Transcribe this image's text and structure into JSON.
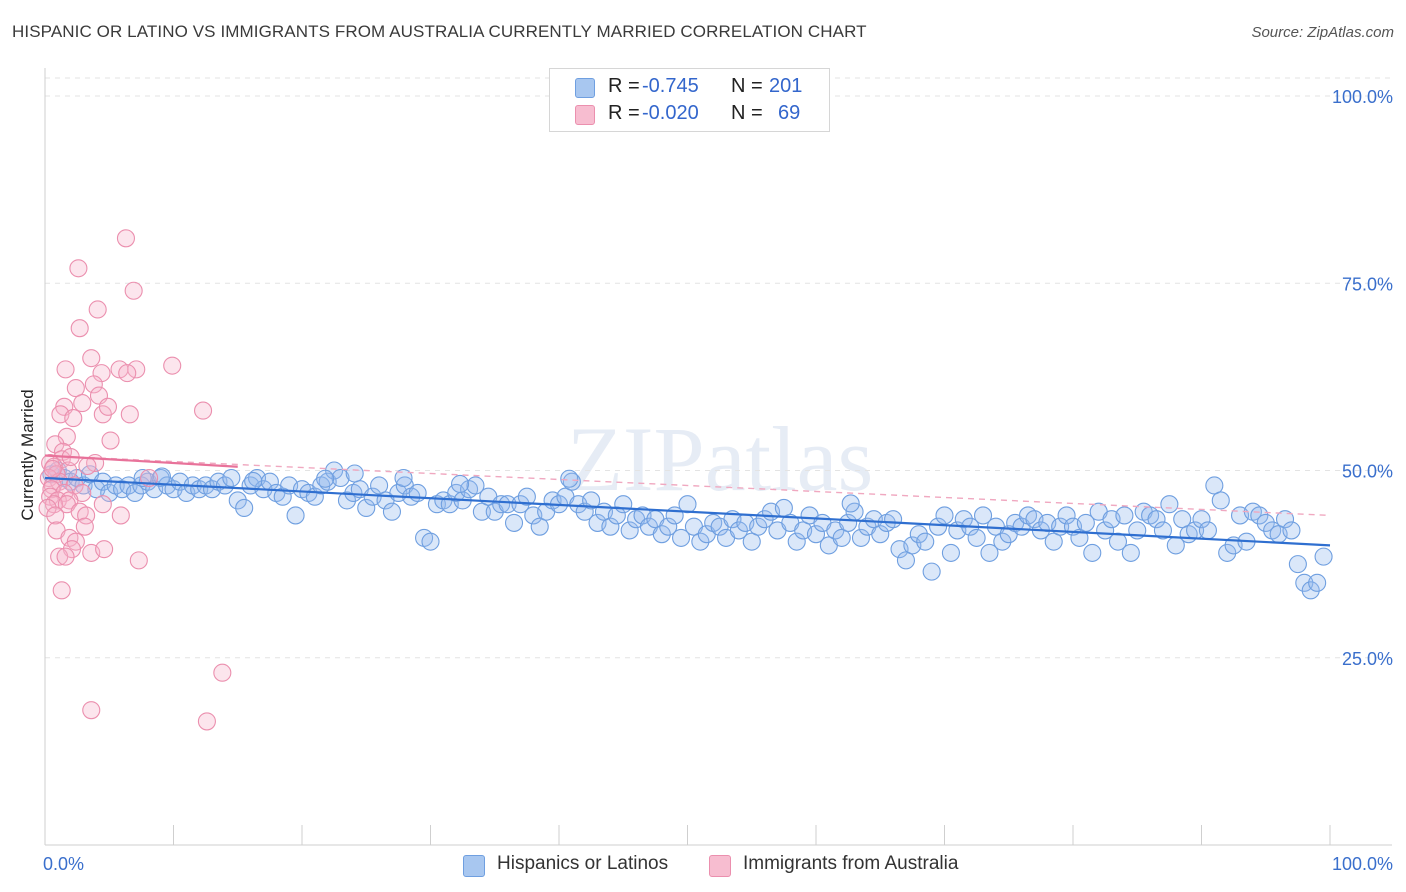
{
  "title": "HISPANIC OR LATINO VS IMMIGRANTS FROM AUSTRALIA CURRENTLY MARRIED CORRELATION CHART",
  "source": "Source: ZipAtlas.com",
  "watermark": "ZIPatlas",
  "legend_top": {
    "rows": [
      {
        "r_label": "R =",
        "r_value": "-0.745",
        "n_label": "N =",
        "n_value": "201",
        "color": "#a8c7f0",
        "border": "#6f9fe0"
      },
      {
        "r_label": "R =",
        "r_value": "-0.020",
        "n_label": "N =",
        "n_value": "69",
        "color": "#f7bdd0",
        "border": "#eb8fae"
      }
    ]
  },
  "legend_bottom": [
    {
      "label": "Hispanics or Latinos",
      "color": "#a8c7f0",
      "border": "#6f9fe0"
    },
    {
      "label": "Immigrants from Australia",
      "color": "#f7bdd0",
      "border": "#eb8fae"
    }
  ],
  "chart_data": {
    "type": "scatter",
    "title": "HISPANIC OR LATINO VS IMMIGRANTS FROM AUSTRALIA CURRENTLY MARRIED CORRELATION CHART",
    "xlabel": "",
    "ylabel": "Currently Married",
    "xlim": [
      0,
      100
    ],
    "ylim": [
      0,
      100
    ],
    "x_tick_labels": [
      "0.0%",
      "100.0%"
    ],
    "y_tick_labels": [
      "25.0%",
      "50.0%",
      "75.0%",
      "100.0%"
    ],
    "y_ticks": [
      25,
      50,
      75,
      100
    ],
    "grid": true,
    "legend_position": "top-center",
    "series": [
      {
        "name": "Hispanics or Latinos",
        "color": "#6f9fe0",
        "fill": "rgba(150,186,238,0.35)",
        "trend": {
          "x": [
            0,
            100
          ],
          "y": [
            49.0,
            40.0
          ],
          "color": "#2f6fd0",
          "dashed": false
        },
        "points": [
          [
            0.5,
            49.5
          ],
          [
            1.0,
            50.0
          ],
          [
            1.5,
            49.0
          ],
          [
            2.0,
            48.5
          ],
          [
            2.5,
            49.0
          ],
          [
            3.0,
            48.0
          ],
          [
            3.5,
            49.5
          ],
          [
            4.0,
            47.5
          ],
          [
            4.5,
            48.5
          ],
          [
            5.0,
            47.0
          ],
          [
            5.5,
            48.0
          ],
          [
            6.0,
            47.5
          ],
          [
            6.5,
            48.0
          ],
          [
            7.0,
            47.0
          ],
          [
            7.5,
            48.0
          ],
          [
            8.0,
            48.5
          ],
          [
            8.5,
            47.5
          ],
          [
            9.0,
            49.0
          ],
          [
            9.5,
            48.0
          ],
          [
            10.0,
            47.5
          ],
          [
            10.5,
            48.5
          ],
          [
            11.0,
            47.0
          ],
          [
            11.5,
            48.0
          ],
          [
            12.0,
            47.5
          ],
          [
            12.5,
            48.0
          ],
          [
            13.0,
            47.5
          ],
          [
            13.5,
            48.5
          ],
          [
            14.0,
            48.0
          ],
          [
            14.5,
            49.0
          ],
          [
            15.0,
            46.0
          ],
          [
            15.5,
            45.0
          ],
          [
            16.0,
            48.0
          ],
          [
            16.5,
            49.0
          ],
          [
            17.0,
            47.5
          ],
          [
            17.5,
            48.5
          ],
          [
            18.0,
            47.0
          ],
          [
            18.5,
            46.5
          ],
          [
            19.0,
            48.0
          ],
          [
            19.5,
            44.0
          ],
          [
            20.0,
            47.5
          ],
          [
            20.5,
            47.0
          ],
          [
            21.0,
            46.5
          ],
          [
            21.5,
            48.0
          ],
          [
            22.0,
            48.5
          ],
          [
            22.5,
            50.0
          ],
          [
            23.0,
            49.0
          ],
          [
            23.5,
            46.0
          ],
          [
            24.0,
            47.0
          ],
          [
            24.5,
            47.5
          ],
          [
            25.0,
            45.0
          ],
          [
            25.5,
            46.5
          ],
          [
            26.0,
            48.0
          ],
          [
            26.5,
            46.0
          ],
          [
            27.0,
            44.5
          ],
          [
            27.5,
            47.0
          ],
          [
            28.0,
            48.0
          ],
          [
            28.5,
            46.5
          ],
          [
            29.0,
            47.0
          ],
          [
            29.5,
            41.0
          ],
          [
            30.0,
            40.5
          ],
          [
            30.5,
            45.5
          ],
          [
            31.0,
            46.0
          ],
          [
            31.5,
            45.5
          ],
          [
            32.0,
            47.0
          ],
          [
            32.5,
            46.0
          ],
          [
            33.0,
            47.5
          ],
          [
            33.5,
            48.0
          ],
          [
            34.0,
            44.5
          ],
          [
            34.5,
            46.5
          ],
          [
            35.0,
            44.5
          ],
          [
            35.5,
            45.5
          ],
          [
            36.0,
            45.5
          ],
          [
            36.5,
            43.0
          ],
          [
            37.0,
            45.5
          ],
          [
            37.5,
            46.5
          ],
          [
            38.0,
            44.0
          ],
          [
            38.5,
            42.5
          ],
          [
            39.0,
            44.5
          ],
          [
            39.5,
            46.0
          ],
          [
            40.0,
            45.5
          ],
          [
            40.5,
            46.5
          ],
          [
            41.0,
            48.5
          ],
          [
            41.5,
            45.5
          ],
          [
            42.0,
            44.5
          ],
          [
            42.5,
            46.0
          ],
          [
            43.0,
            43.0
          ],
          [
            43.5,
            44.5
          ],
          [
            44.0,
            42.5
          ],
          [
            44.5,
            44.0
          ],
          [
            45.0,
            45.5
          ],
          [
            45.5,
            42.0
          ],
          [
            46.0,
            43.5
          ],
          [
            46.5,
            44.0
          ],
          [
            47.0,
            42.5
          ],
          [
            47.5,
            43.5
          ],
          [
            48.0,
            41.5
          ],
          [
            48.5,
            42.5
          ],
          [
            49.0,
            44.0
          ],
          [
            49.5,
            41.0
          ],
          [
            50.0,
            45.5
          ],
          [
            50.5,
            42.5
          ],
          [
            51.0,
            40.5
          ],
          [
            51.5,
            41.5
          ],
          [
            52.0,
            43.0
          ],
          [
            52.5,
            42.5
          ],
          [
            53.0,
            41.0
          ],
          [
            53.5,
            43.5
          ],
          [
            54.0,
            42.0
          ],
          [
            54.5,
            43.0
          ],
          [
            55.0,
            40.5
          ],
          [
            55.5,
            42.5
          ],
          [
            56.0,
            43.5
          ],
          [
            56.5,
            44.5
          ],
          [
            57.0,
            42.0
          ],
          [
            57.5,
            45.0
          ],
          [
            58.0,
            43.0
          ],
          [
            58.5,
            40.5
          ],
          [
            59.0,
            42.0
          ],
          [
            59.5,
            44.0
          ],
          [
            60.0,
            41.5
          ],
          [
            60.5,
            43.0
          ],
          [
            61.0,
            40.0
          ],
          [
            61.5,
            42.0
          ],
          [
            62.0,
            41.0
          ],
          [
            62.5,
            43.0
          ],
          [
            63.0,
            44.5
          ],
          [
            63.5,
            41.0
          ],
          [
            64.0,
            42.5
          ],
          [
            64.5,
            43.5
          ],
          [
            65.0,
            41.5
          ],
          [
            65.5,
            43.0
          ],
          [
            66.0,
            43.5
          ],
          [
            66.5,
            39.5
          ],
          [
            67.0,
            38.0
          ],
          [
            67.5,
            40.0
          ],
          [
            68.0,
            41.5
          ],
          [
            68.5,
            40.5
          ],
          [
            69.0,
            36.5
          ],
          [
            69.5,
            42.5
          ],
          [
            70.0,
            44.0
          ],
          [
            70.5,
            39.0
          ],
          [
            71.0,
            42.0
          ],
          [
            71.5,
            43.5
          ],
          [
            72.0,
            42.5
          ],
          [
            72.5,
            41.0
          ],
          [
            73.0,
            44.0
          ],
          [
            73.5,
            39.0
          ],
          [
            74.0,
            42.5
          ],
          [
            74.5,
            40.5
          ],
          [
            75.0,
            41.5
          ],
          [
            75.5,
            43.0
          ],
          [
            76.0,
            42.5
          ],
          [
            76.5,
            44.0
          ],
          [
            77.0,
            43.5
          ],
          [
            77.5,
            42.0
          ],
          [
            78.0,
            43.0
          ],
          [
            78.5,
            40.5
          ],
          [
            79.0,
            42.5
          ],
          [
            79.5,
            44.0
          ],
          [
            80.0,
            42.5
          ],
          [
            80.5,
            41.0
          ],
          [
            81.0,
            43.0
          ],
          [
            81.5,
            39.0
          ],
          [
            82.0,
            44.5
          ],
          [
            82.5,
            42.0
          ],
          [
            83.0,
            43.5
          ],
          [
            83.5,
            40.5
          ],
          [
            84.0,
            44.0
          ],
          [
            84.5,
            39.0
          ],
          [
            85.0,
            42.0
          ],
          [
            85.5,
            44.5
          ],
          [
            86.0,
            44.0
          ],
          [
            86.5,
            43.5
          ],
          [
            87.0,
            42.0
          ],
          [
            87.5,
            45.5
          ],
          [
            88.0,
            40.0
          ],
          [
            88.5,
            43.5
          ],
          [
            89.0,
            41.5
          ],
          [
            89.5,
            42.0
          ],
          [
            90.0,
            43.5
          ],
          [
            90.5,
            42.0
          ],
          [
            91.0,
            48.0
          ],
          [
            91.5,
            46.0
          ],
          [
            92.0,
            39.0
          ],
          [
            92.5,
            40.0
          ],
          [
            93.0,
            44.0
          ],
          [
            93.5,
            40.5
          ],
          [
            94.0,
            44.5
          ],
          [
            94.5,
            44.0
          ],
          [
            95.0,
            43.0
          ],
          [
            95.5,
            42.0
          ],
          [
            96.0,
            41.5
          ],
          [
            96.5,
            43.5
          ],
          [
            97.0,
            42.0
          ],
          [
            97.5,
            37.5
          ],
          [
            98.0,
            35.0
          ],
          [
            98.5,
            34.0
          ],
          [
            99.0,
            35.0
          ],
          [
            99.5,
            38.5
          ],
          [
            7.6,
            49.0
          ],
          [
            9.1,
            49.2
          ],
          [
            16.2,
            48.6
          ],
          [
            21.8,
            48.9
          ],
          [
            24.1,
            49.6
          ],
          [
            27.9,
            49.0
          ],
          [
            32.3,
            48.2
          ],
          [
            40.8,
            48.9
          ],
          [
            62.7,
            45.6
          ]
        ]
      },
      {
        "name": "Immigrants from Australia",
        "color": "#eb8fae",
        "fill": "rgba(246,180,204,0.35)",
        "trend_solid": {
          "x": [
            0,
            15
          ],
          "y": [
            52.0,
            50.5
          ],
          "color": "#e8729a"
        },
        "trend_dashed": {
          "x": [
            0,
            100
          ],
          "y": [
            52.0,
            44.0
          ],
          "color": "#f0a8c0"
        },
        "points": [
          [
            6.3,
            81.0
          ],
          [
            2.6,
            77.0
          ],
          [
            6.9,
            74.0
          ],
          [
            4.1,
            71.5
          ],
          [
            2.7,
            69.0
          ],
          [
            3.6,
            65.0
          ],
          [
            1.6,
            63.5
          ],
          [
            4.4,
            63.0
          ],
          [
            5.8,
            63.5
          ],
          [
            7.1,
            63.5
          ],
          [
            9.9,
            64.0
          ],
          [
            6.4,
            63.0
          ],
          [
            2.4,
            61.0
          ],
          [
            3.8,
            61.5
          ],
          [
            4.2,
            60.0
          ],
          [
            4.5,
            57.5
          ],
          [
            6.6,
            57.5
          ],
          [
            12.3,
            58.0
          ],
          [
            1.5,
            58.5
          ],
          [
            2.9,
            59.0
          ],
          [
            1.2,
            57.5
          ],
          [
            2.2,
            57.0
          ],
          [
            4.9,
            58.5
          ],
          [
            5.1,
            54.0
          ],
          [
            1.7,
            54.5
          ],
          [
            0.8,
            53.5
          ],
          [
            1.4,
            52.5
          ],
          [
            3.9,
            51.0
          ],
          [
            1.3,
            51.5
          ],
          [
            0.4,
            51.0
          ],
          [
            0.7,
            50.5
          ],
          [
            1.8,
            50.0
          ],
          [
            0.9,
            49.5
          ],
          [
            0.3,
            49.0
          ],
          [
            1.1,
            48.5
          ],
          [
            0.6,
            48.0
          ],
          [
            2.3,
            48.0
          ],
          [
            0.5,
            47.5
          ],
          [
            1.5,
            47.0
          ],
          [
            2.9,
            47.0
          ],
          [
            8.1,
            49.0
          ],
          [
            0.4,
            46.5
          ],
          [
            1.0,
            46.0
          ],
          [
            1.9,
            46.0
          ],
          [
            0.7,
            45.5
          ],
          [
            0.2,
            45.0
          ],
          [
            1.7,
            45.5
          ],
          [
            4.5,
            45.5
          ],
          [
            2.7,
            44.5
          ],
          [
            0.8,
            44.0
          ],
          [
            3.2,
            44.0
          ],
          [
            5.9,
            44.0
          ],
          [
            3.1,
            42.5
          ],
          [
            0.9,
            42.0
          ],
          [
            1.9,
            41.0
          ],
          [
            2.4,
            40.5
          ],
          [
            2.1,
            39.5
          ],
          [
            3.6,
            39.0
          ],
          [
            1.1,
            38.5
          ],
          [
            4.6,
            39.5
          ],
          [
            7.3,
            38.0
          ],
          [
            1.6,
            38.5
          ],
          [
            1.3,
            34.0
          ],
          [
            13.8,
            23.0
          ],
          [
            3.6,
            18.0
          ],
          [
            12.6,
            16.5
          ],
          [
            0.6,
            50.2
          ],
          [
            2.0,
            51.8
          ],
          [
            3.3,
            50.6
          ]
        ]
      }
    ]
  }
}
